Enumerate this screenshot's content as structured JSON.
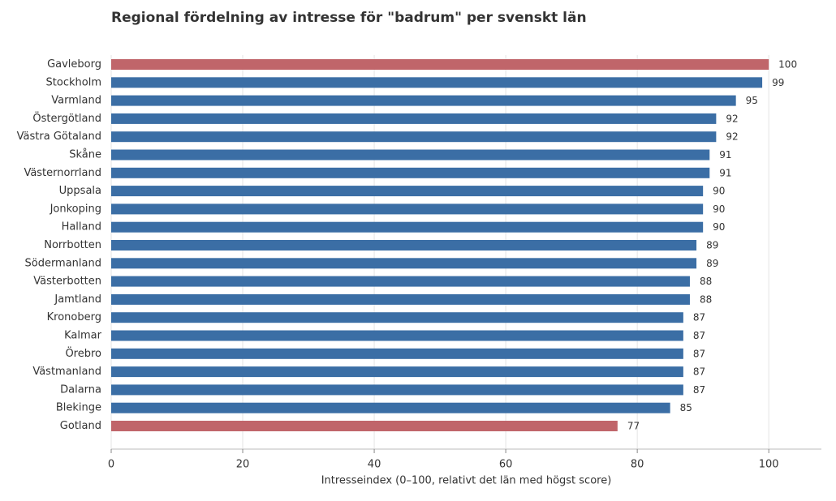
{
  "chart_data": {
    "type": "bar",
    "orientation": "horizontal",
    "title": "Regional fördelning av intresse för \"badrum\" per svenskt län",
    "xlabel": "Intresseindex (0–100, relativt det län med högst score)",
    "ylabel": "",
    "xlim": [
      0,
      108
    ],
    "xticks": [
      0,
      20,
      40,
      60,
      80,
      100
    ],
    "grid": "vertical",
    "categories": [
      "Gavleborg",
      "Stockholm",
      "Varmland",
      "Östergötland",
      "Västra Götaland",
      "Skåne",
      "Västernorrland",
      "Uppsala",
      "Jonkoping",
      "Halland",
      "Norrbotten",
      "Södermanland",
      "Västerbotten",
      "Jamtland",
      "Kronoberg",
      "Kalmar",
      "Örebro",
      "Västmanland",
      "Dalarna",
      "Blekinge",
      "Gotland"
    ],
    "values": [
      100,
      99,
      95,
      92,
      92,
      91,
      91,
      90,
      90,
      90,
      89,
      89,
      88,
      88,
      87,
      87,
      87,
      87,
      87,
      85,
      77
    ],
    "highlighted": [
      "Gavleborg",
      "Gotland"
    ],
    "colors": {
      "default": "#3b6ea5",
      "highlight": "#c0656a",
      "grid": "#e5e5e5",
      "axis": "#bbbbbb"
    }
  }
}
